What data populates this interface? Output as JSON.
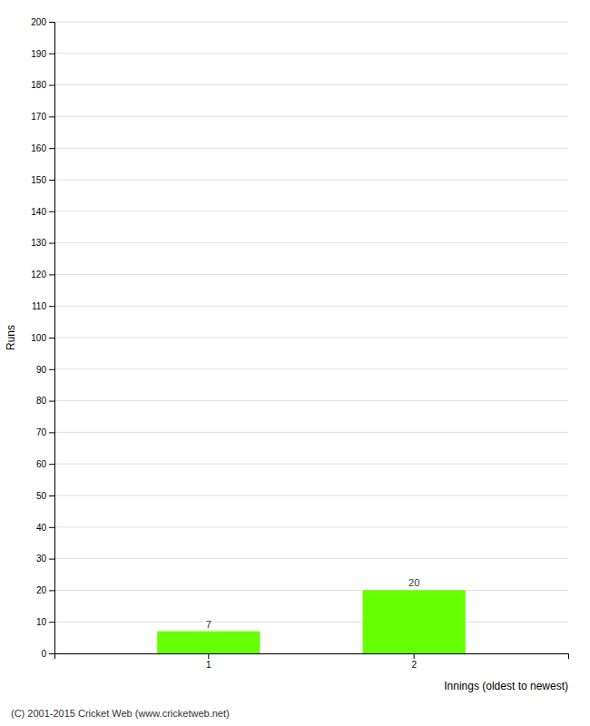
{
  "chart_data": {
    "type": "bar",
    "categories": [
      "1",
      "2"
    ],
    "values": [
      7,
      20
    ],
    "color": "#66ff00",
    "xlabel": "Innings (oldest to newest)",
    "ylabel": "Runs",
    "ylim": [
      0,
      200
    ],
    "yticks": [
      0,
      10,
      20,
      30,
      40,
      50,
      60,
      70,
      80,
      90,
      100,
      110,
      120,
      130,
      140,
      150,
      160,
      170,
      180,
      190,
      200
    ],
    "grid": true,
    "data_labels": true,
    "footer": "(C) 2001-2015 Cricket Web (www.cricketweb.net)"
  }
}
